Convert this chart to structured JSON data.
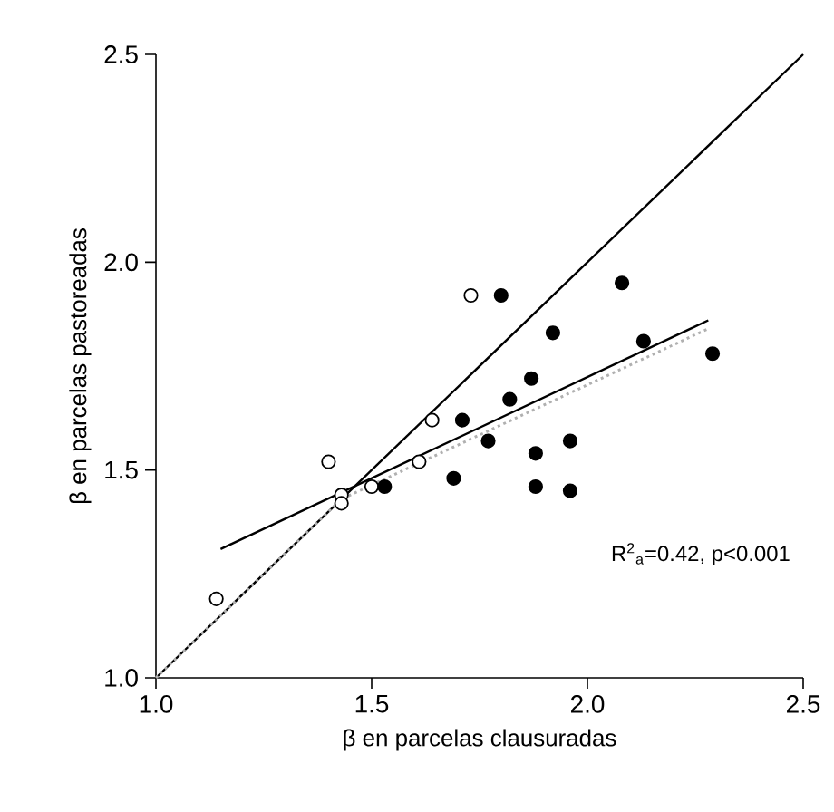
{
  "chart_data": {
    "type": "scatter",
    "xlabel": "β en parcelas clausuradas",
    "ylabel": "β en parcelas pastoreadas",
    "xlim": [
      1.0,
      2.5
    ],
    "ylim": [
      1.0,
      2.5
    ],
    "xticks": [
      {
        "value": 1.0,
        "label": "1.0"
      },
      {
        "value": 1.5,
        "label": "1.5"
      },
      {
        "value": 2.0,
        "label": "2.0"
      },
      {
        "value": 2.5,
        "label": "2.5"
      }
    ],
    "yticks": [
      {
        "value": 1.0,
        "label": "1.0"
      },
      {
        "value": 1.5,
        "label": "1.5"
      },
      {
        "value": 2.0,
        "label": "2.0"
      },
      {
        "value": 2.5,
        "label": "2.5"
      }
    ],
    "grid": false,
    "series": [
      {
        "marker": "circle",
        "color": "#ffffff",
        "x": [
          1.14,
          1.4,
          1.43,
          1.43,
          1.5,
          1.61,
          1.64,
          1.73
        ],
        "values": [
          1.19,
          1.52,
          1.44,
          1.42,
          1.46,
          1.52,
          1.62,
          1.92
        ]
      },
      {
        "marker": "circle",
        "color": "#000000",
        "x": [
          1.53,
          1.69,
          1.71,
          1.77,
          1.8,
          1.82,
          1.87,
          1.88,
          1.88,
          1.92,
          1.96,
          1.96,
          2.08,
          2.13,
          2.29
        ],
        "values": [
          1.46,
          1.48,
          1.62,
          1.57,
          1.92,
          1.67,
          1.72,
          1.54,
          1.46,
          1.83,
          1.57,
          1.45,
          1.95,
          1.81,
          1.78
        ]
      },
      {
        "type": "line",
        "marker": "none",
        "color": "#000000",
        "line_style": "solid",
        "x": [
          1.0,
          2.5
        ],
        "values": [
          1.0,
          2.5
        ]
      },
      {
        "type": "line",
        "marker": "none",
        "color": "#b0b0b0",
        "line_style": "dotted",
        "x": [
          1.0,
          1.43,
          2.28
        ],
        "values": [
          1.0,
          1.43,
          1.84
        ]
      },
      {
        "type": "line",
        "marker": "none",
        "color": "#000000",
        "line_style": "solid",
        "x": [
          1.15,
          2.28
        ],
        "values": [
          1.31,
          1.86
        ]
      }
    ],
    "annotations": [
      "R$^{2}$$_{a}$=0.42, p<0.001"
    ]
  }
}
